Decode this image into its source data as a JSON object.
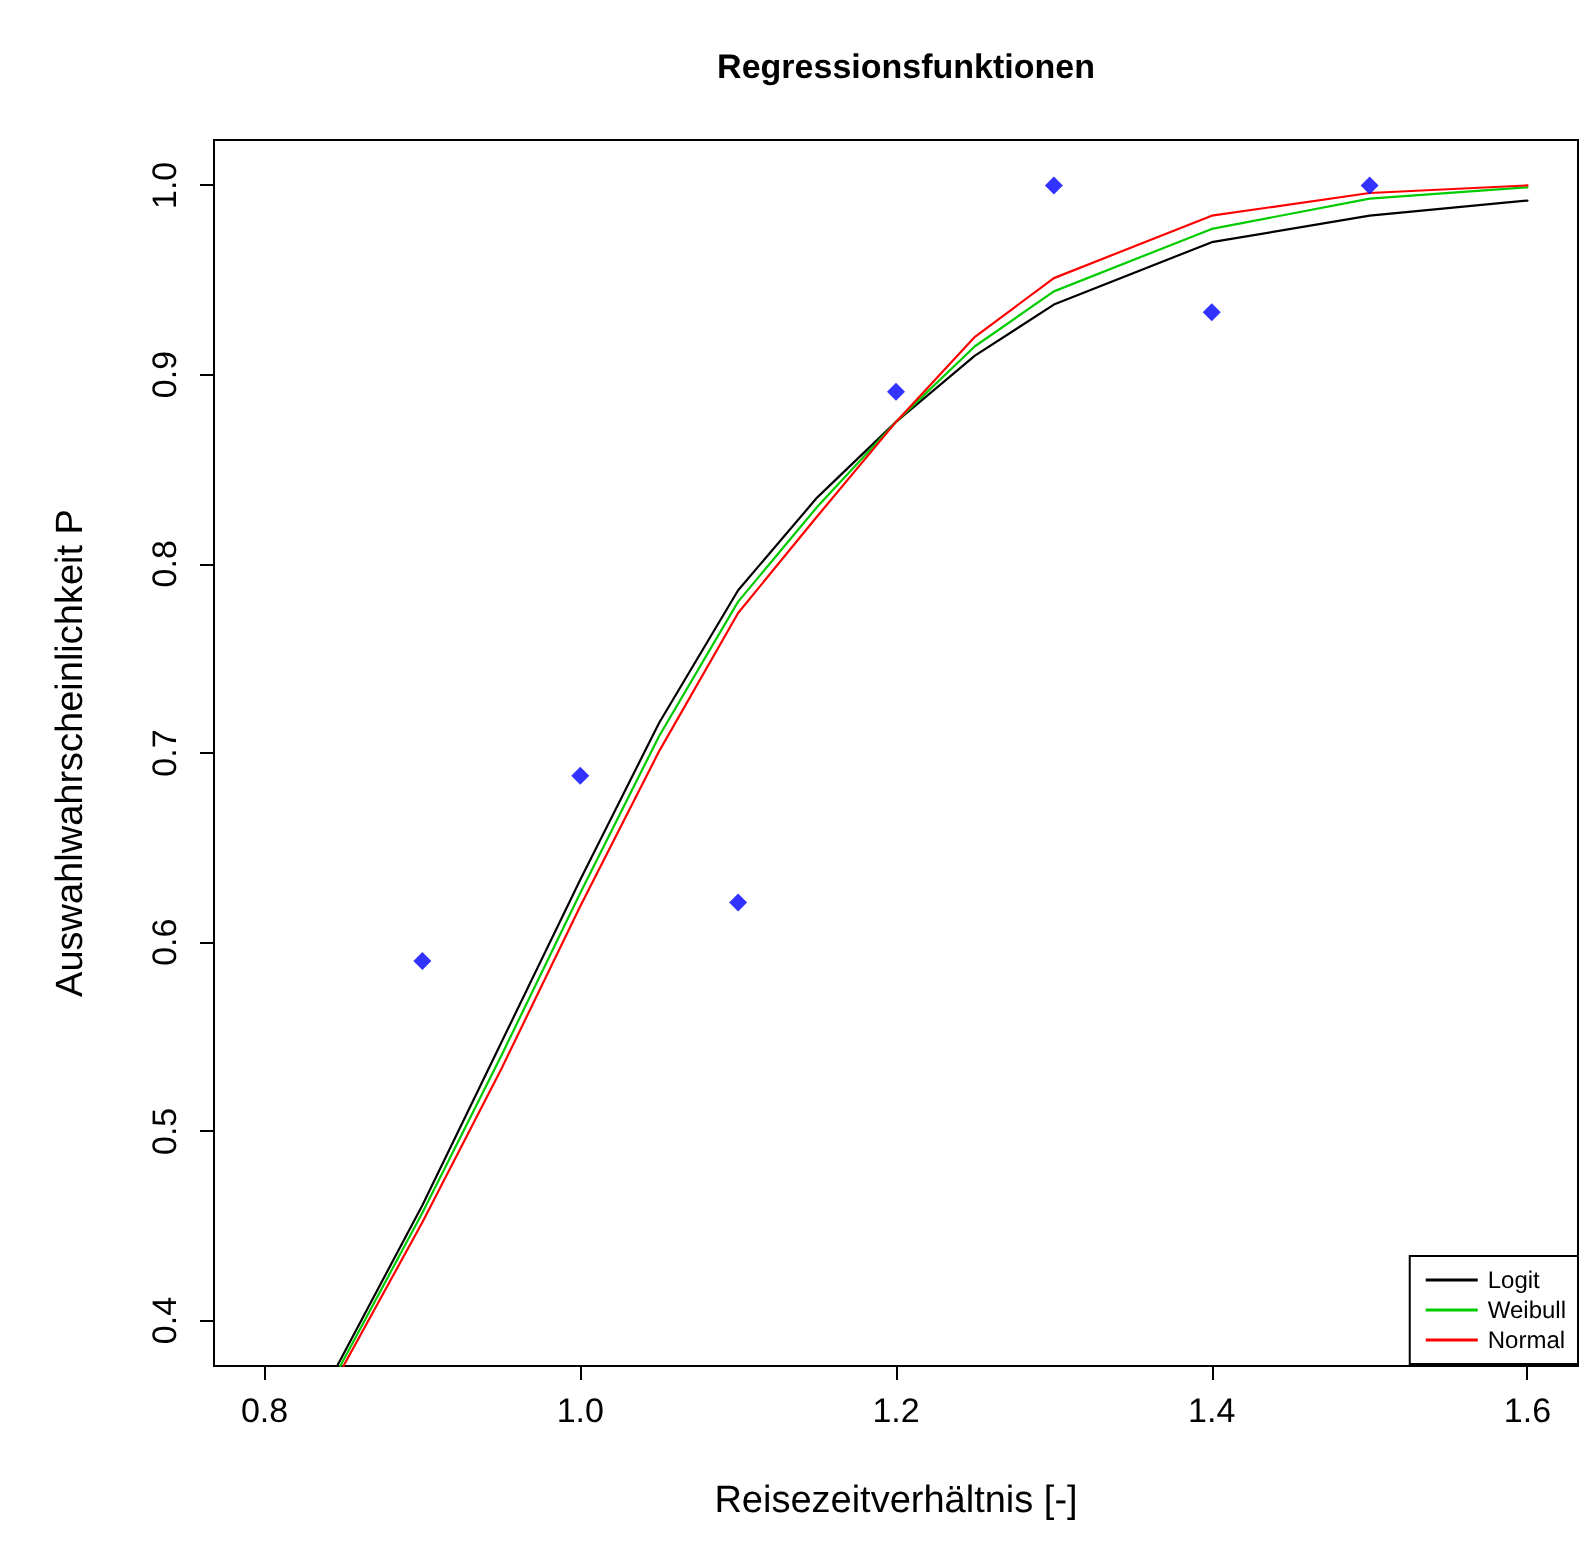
{
  "chart_data": {
    "type": "line",
    "title": "Regressionsfunktionen",
    "xlabel": "Reisezeitverhältnis [-]",
    "ylabel": "Auswahlwahrscheinlichkeit P",
    "xlim": [
      0.768,
      1.632
    ],
    "ylim": [
      0.376,
      1.024
    ],
    "xticks": [
      0.8,
      {
        "value": 1,
        "label": "1.0"
      },
      1.2,
      1.4,
      1.6
    ],
    "yticks": [
      0.4,
      0.5,
      0.6,
      0.7,
      0.8,
      0.9,
      {
        "value": 1,
        "label": "1.0"
      }
    ],
    "grid": false,
    "legend": "bottom right",
    "marker": "none",
    "line_style": "solid",
    "series": [
      {
        "type": "scatter",
        "marker": "diamond",
        "color": "#0000ff",
        "x": [
          0.9,
          1.0,
          1.1,
          1.2,
          1.3,
          1.4,
          1.5
        ],
        "values": [
          0.59,
          0.688,
          0.621,
          0.891,
          1.0,
          0.933,
          1.0
        ]
      },
      {
        "name": "Logit",
        "color": "#000000",
        "x": [
          0.846,
          0.9,
          0.95,
          1.0,
          1.05,
          1.1,
          1.15,
          1.2,
          1.25,
          1.3,
          1.4,
          1.5,
          1.6
        ],
        "values": [
          0.376,
          0.461,
          0.547,
          0.633,
          0.716,
          0.786,
          0.835,
          0.875,
          0.91,
          0.937,
          0.97,
          0.984,
          0.992
        ]
      },
      {
        "name": "Weibull",
        "color": "#00cc00",
        "x": [
          0.848,
          0.9,
          0.95,
          1.0,
          1.05,
          1.1,
          1.15,
          1.2,
          1.25,
          1.3,
          1.4,
          1.5,
          1.6
        ],
        "values": [
          0.376,
          0.457,
          0.54,
          0.626,
          0.709,
          0.78,
          0.83,
          0.875,
          0.915,
          0.944,
          0.977,
          0.993,
          0.999
        ]
      },
      {
        "name": "Normal",
        "color": "#ff0000",
        "x": [
          0.85,
          0.9,
          0.95,
          1.0,
          1.05,
          1.1,
          1.15,
          1.2,
          1.25,
          1.3,
          1.4,
          1.5,
          1.6
        ],
        "values": [
          0.376,
          0.452,
          0.533,
          0.619,
          0.701,
          0.774,
          0.825,
          0.875,
          0.92,
          0.951,
          0.984,
          0.996,
          1.0
        ]
      }
    ]
  }
}
